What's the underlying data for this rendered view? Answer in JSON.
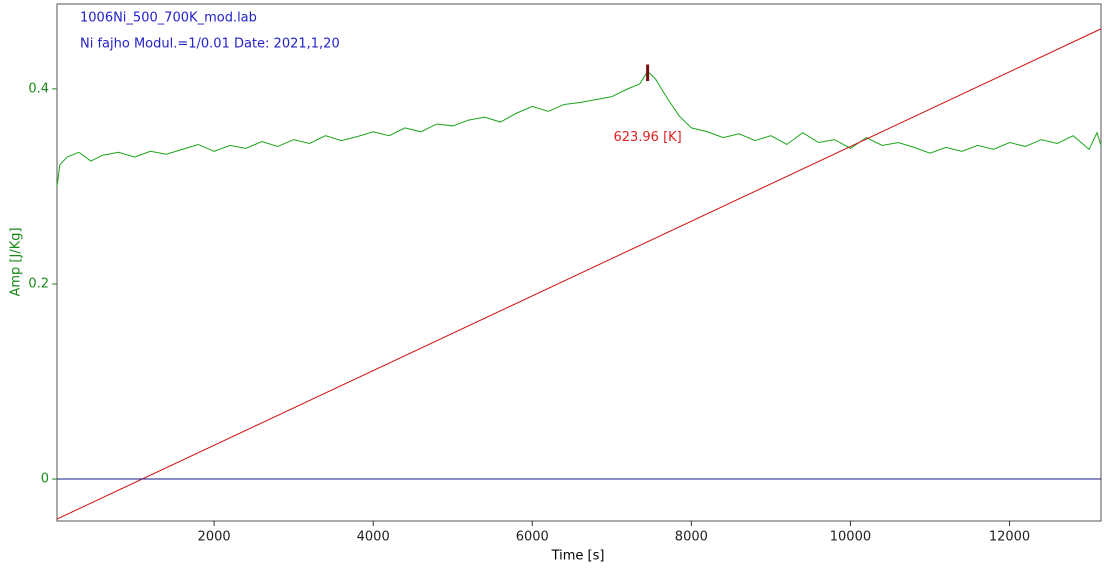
{
  "chart_data": {
    "type": "line",
    "title": "1006Ni_500_700K_mod.lab",
    "subtitle": "Ni fajho Modul.=1/0.01 Date: 2021,1,20",
    "title_color": "#2222cc",
    "xlabel": "Time [s]",
    "ylabel": "Amp  [J/Kg]",
    "ylabel_color": "#1a8a1a",
    "xlim": [
      25,
      13150
    ],
    "ylim": [
      -0.043,
      0.487
    ],
    "xticks": [
      2000,
      4000,
      6000,
      8000,
      10000,
      12000
    ],
    "yticks": [
      0,
      0.2,
      0.4
    ],
    "series": [
      {
        "color": "#1aa51a",
        "x": [
          25,
          60,
          150,
          300,
          450,
          600,
          800,
          1000,
          1200,
          1400,
          1600,
          1800,
          2000,
          2200,
          2400,
          2600,
          2800,
          3000,
          3200,
          3400,
          3600,
          3800,
          4000,
          4200,
          4400,
          4600,
          4800,
          5000,
          5200,
          5400,
          5600,
          5800,
          6000,
          6200,
          6400,
          6600,
          6800,
          7000,
          7200,
          7350,
          7450,
          7550,
          7700,
          7850,
          8000,
          8200,
          8400,
          8600,
          8800,
          9000,
          9200,
          9400,
          9600,
          9800,
          10000,
          10200,
          10400,
          10600,
          10800,
          11000,
          11200,
          11400,
          11600,
          11800,
          12000,
          12200,
          12400,
          12600,
          12800,
          13000,
          13100,
          13150
        ],
        "values": [
          0.3,
          0.322,
          0.33,
          0.335,
          0.326,
          0.332,
          0.335,
          0.33,
          0.336,
          0.333,
          0.338,
          0.343,
          0.336,
          0.342,
          0.339,
          0.346,
          0.341,
          0.348,
          0.344,
          0.352,
          0.347,
          0.351,
          0.356,
          0.352,
          0.36,
          0.356,
          0.364,
          0.362,
          0.368,
          0.371,
          0.366,
          0.375,
          0.382,
          0.377,
          0.384,
          0.386,
          0.389,
          0.392,
          0.4,
          0.405,
          0.418,
          0.41,
          0.39,
          0.372,
          0.36,
          0.356,
          0.35,
          0.354,
          0.347,
          0.352,
          0.343,
          0.355,
          0.345,
          0.348,
          0.339,
          0.35,
          0.342,
          0.345,
          0.34,
          0.334,
          0.34,
          0.336,
          0.342,
          0.338,
          0.345,
          0.341,
          0.348,
          0.344,
          0.352,
          0.338,
          0.355,
          0.342
        ]
      },
      {
        "color": "#cc1111",
        "x": [
          25,
          13150
        ],
        "values": [
          -0.041,
          0.4615
        ]
      },
      {
        "color": "#1a1a8a",
        "x": [
          25,
          13150
        ],
        "values": [
          0,
          0
        ]
      }
    ],
    "annotation": {
      "text": "623.96 [K]",
      "color": "#dd2222",
      "x": 7450,
      "y": 0.35,
      "marker_y": [
        0.408,
        0.425
      ],
      "marker_color": "#7a0f0f"
    }
  }
}
